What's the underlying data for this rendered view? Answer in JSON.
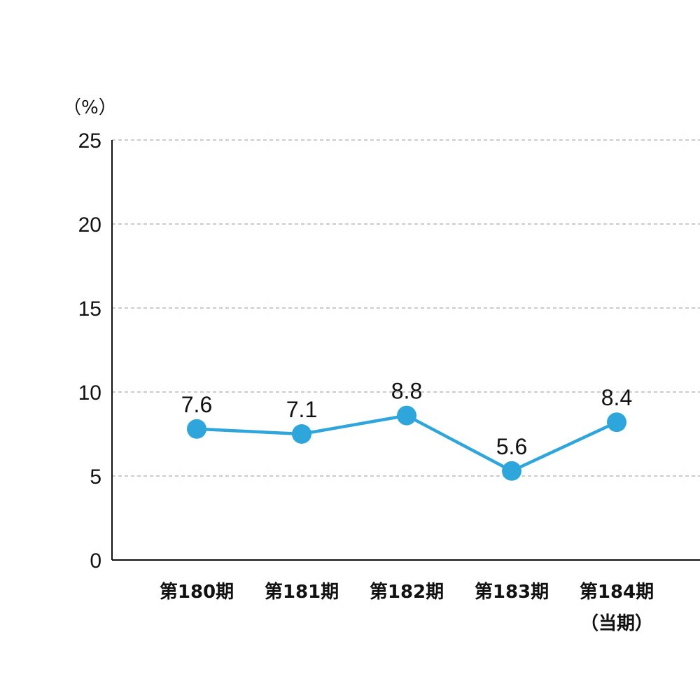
{
  "chart_data": {
    "type": "line",
    "unit_label": "（%）",
    "categories": [
      [
        "第180期"
      ],
      [
        "第181期"
      ],
      [
        "第182期"
      ],
      [
        "第183期"
      ],
      [
        "第184期",
        "（当期）"
      ]
    ],
    "values": [
      7.6,
      7.1,
      8.8,
      5.6,
      8.4
    ],
    "plotted_values": [
      7.8,
      7.5,
      8.6,
      5.3,
      8.2
    ],
    "ylim": [
      0,
      25
    ],
    "yticks": [
      0,
      5,
      10,
      15,
      20,
      25
    ],
    "grid": true,
    "line_color": "#2ea6dc",
    "axis_color": "#111111",
    "grid_color": "#bbbbbb"
  }
}
